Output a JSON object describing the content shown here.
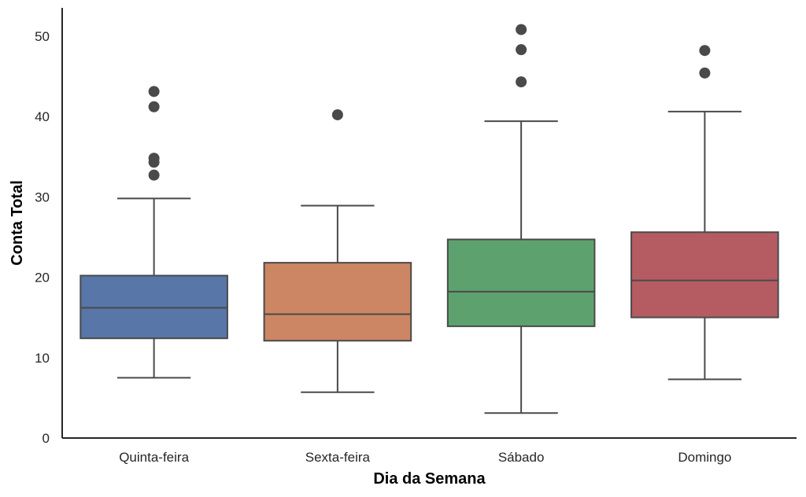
{
  "chart_data": {
    "type": "box",
    "xlabel": "Dia da Semana",
    "ylabel": "Conta Total",
    "categories": [
      "Quinta-feira",
      "Sexta-feira",
      "Sábado",
      "Domingo"
    ],
    "ylim": [
      0,
      53.5
    ],
    "yticks": [
      0,
      10,
      20,
      30,
      40,
      50
    ],
    "grid": false,
    "colors": [
      "#5876a8",
      "#cc8663",
      "#5da26e",
      "#b55c63"
    ],
    "line_color": "#4a4a4a",
    "boxes": [
      {
        "category": "Quinta-feira",
        "whisker_low": 7.5,
        "q1": 12.4,
        "median": 16.2,
        "q3": 20.2,
        "whisker_high": 29.8,
        "outliers": [
          32.7,
          34.3,
          34.8,
          41.2,
          43.1
        ]
      },
      {
        "category": "Sexta-feira",
        "whisker_low": 5.7,
        "q1": 12.1,
        "median": 15.4,
        "q3": 21.8,
        "whisker_high": 28.9,
        "outliers": [
          40.2
        ]
      },
      {
        "category": "Sábado",
        "whisker_low": 3.1,
        "q1": 13.9,
        "median": 18.2,
        "q3": 24.7,
        "whisker_high": 39.4,
        "outliers": [
          44.3,
          48.3,
          50.8
        ]
      },
      {
        "category": "Domingo",
        "whisker_low": 7.3,
        "q1": 15.0,
        "median": 19.6,
        "q3": 25.6,
        "whisker_high": 40.6,
        "outliers": [
          45.4,
          48.2
        ]
      }
    ]
  }
}
